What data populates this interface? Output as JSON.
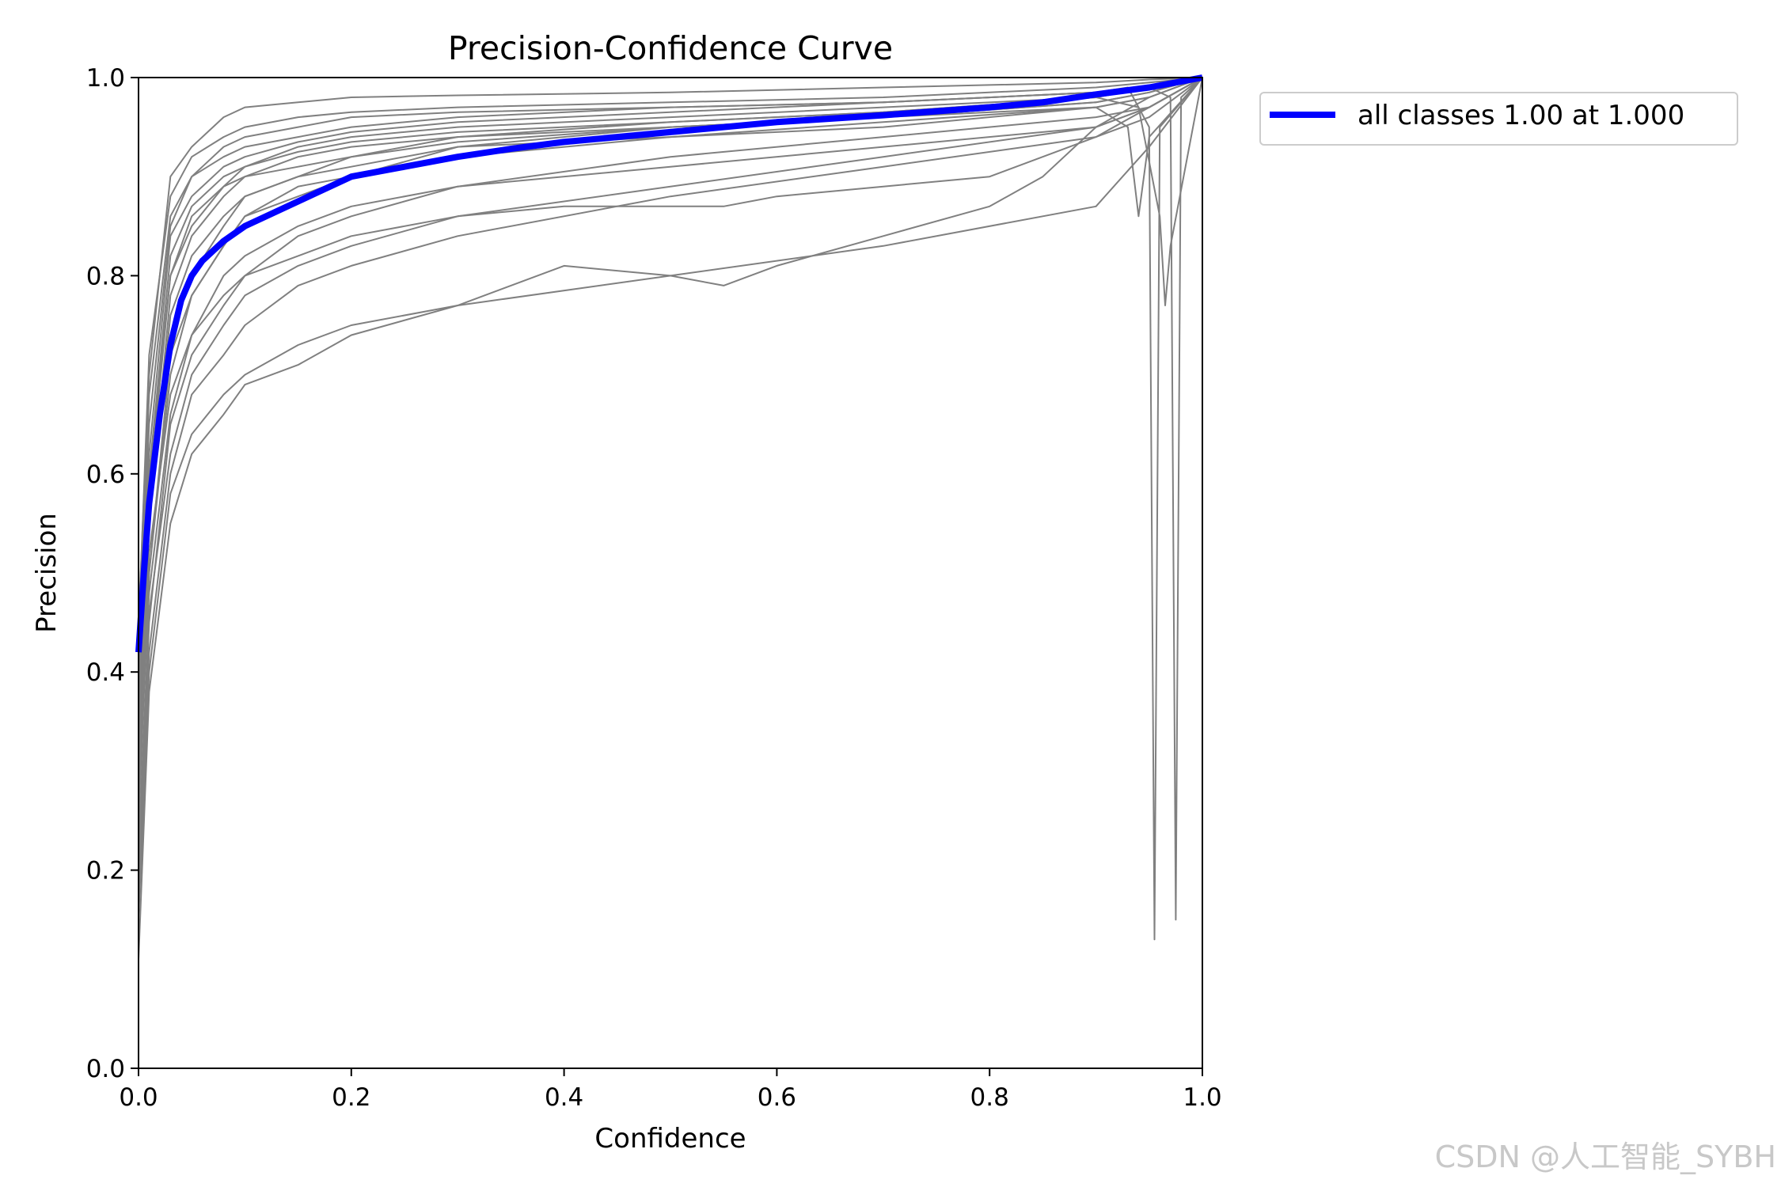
{
  "chart_data": {
    "type": "line",
    "title": "Precision-Confidence Curve",
    "xlabel": "Confidence",
    "ylabel": "Precision",
    "xlim": [
      0,
      1
    ],
    "ylim": [
      0,
      1
    ],
    "xticks": [
      "0.0",
      "0.2",
      "0.4",
      "0.6",
      "0.8",
      "1.0"
    ],
    "yticks": [
      "0.0",
      "0.2",
      "0.4",
      "0.6",
      "0.8",
      "1.0"
    ],
    "grid": false,
    "legend": {
      "placement": "outside-top-right",
      "entries": [
        {
          "label": "all classes 1.00 at 1.000",
          "color": "#0000ff"
        }
      ]
    },
    "class_curve_color": "#808080",
    "aggregate_series": {
      "name": "all classes 1.00 at 1.000",
      "color": "#0000ff",
      "x": [
        0.0,
        0.005,
        0.01,
        0.02,
        0.03,
        0.04,
        0.05,
        0.06,
        0.08,
        0.1,
        0.12,
        0.15,
        0.2,
        0.25,
        0.3,
        0.35,
        0.4,
        0.5,
        0.6,
        0.7,
        0.8,
        0.85,
        0.9,
        0.95,
        0.97,
        1.0
      ],
      "y": [
        0.42,
        0.5,
        0.57,
        0.66,
        0.73,
        0.775,
        0.8,
        0.815,
        0.835,
        0.85,
        0.86,
        0.875,
        0.9,
        0.91,
        0.92,
        0.928,
        0.935,
        0.945,
        0.955,
        0.962,
        0.97,
        0.975,
        0.983,
        0.99,
        0.994,
        1.0
      ]
    },
    "class_series": [
      {
        "x": [
          0.0,
          0.01,
          0.03,
          0.05,
          0.08,
          0.1,
          0.15,
          0.2,
          0.3,
          0.5,
          0.7,
          0.9,
          0.95,
          1.0
        ],
        "y": [
          0.45,
          0.7,
          0.9,
          0.93,
          0.96,
          0.97,
          0.975,
          0.98,
          0.982,
          0.985,
          0.99,
          0.995,
          0.998,
          1.0
        ]
      },
      {
        "x": [
          0.0,
          0.01,
          0.03,
          0.05,
          0.08,
          0.1,
          0.15,
          0.2,
          0.3,
          0.5,
          0.7,
          0.9,
          0.95,
          1.0
        ],
        "y": [
          0.4,
          0.65,
          0.85,
          0.9,
          0.93,
          0.94,
          0.95,
          0.96,
          0.965,
          0.97,
          0.975,
          0.985,
          0.99,
          1.0
        ]
      },
      {
        "x": [
          0.0,
          0.01,
          0.03,
          0.05,
          0.08,
          0.1,
          0.15,
          0.2,
          0.3,
          0.5,
          0.7,
          0.9,
          0.95,
          1.0
        ],
        "y": [
          0.35,
          0.6,
          0.82,
          0.87,
          0.9,
          0.91,
          0.93,
          0.94,
          0.95,
          0.96,
          0.97,
          0.98,
          0.99,
          1.0
        ]
      },
      {
        "x": [
          0.0,
          0.01,
          0.03,
          0.05,
          0.08,
          0.1,
          0.15,
          0.2,
          0.3,
          0.5,
          0.7,
          0.9,
          0.95,
          1.0
        ],
        "y": [
          0.3,
          0.55,
          0.78,
          0.84,
          0.88,
          0.9,
          0.91,
          0.92,
          0.935,
          0.95,
          0.96,
          0.975,
          0.985,
          1.0
        ]
      },
      {
        "x": [
          0.0,
          0.01,
          0.03,
          0.05,
          0.08,
          0.1,
          0.15,
          0.2,
          0.3,
          0.5,
          0.7,
          0.9,
          0.95,
          1.0
        ],
        "y": [
          0.25,
          0.5,
          0.7,
          0.78,
          0.83,
          0.86,
          0.89,
          0.9,
          0.92,
          0.94,
          0.95,
          0.97,
          0.98,
          1.0
        ]
      },
      {
        "x": [
          0.0,
          0.01,
          0.03,
          0.05,
          0.08,
          0.1,
          0.15,
          0.2,
          0.3,
          0.5,
          0.7,
          0.9,
          0.95,
          1.0
        ],
        "y": [
          0.2,
          0.45,
          0.65,
          0.72,
          0.77,
          0.8,
          0.84,
          0.86,
          0.89,
          0.92,
          0.94,
          0.96,
          0.97,
          1.0
        ]
      },
      {
        "x": [
          0.0,
          0.01,
          0.03,
          0.05,
          0.08,
          0.1,
          0.15,
          0.2,
          0.3,
          0.5,
          0.7,
          0.9,
          0.95,
          1.0
        ],
        "y": [
          0.15,
          0.4,
          0.58,
          0.64,
          0.68,
          0.7,
          0.73,
          0.75,
          0.77,
          0.8,
          0.83,
          0.87,
          0.93,
          1.0
        ]
      },
      {
        "x": [
          0.0,
          0.01,
          0.03,
          0.05,
          0.08,
          0.1,
          0.15,
          0.2,
          0.3,
          0.4,
          0.5,
          0.55,
          0.6,
          0.7,
          0.8,
          0.85,
          0.9,
          0.95,
          1.0
        ],
        "y": [
          0.11,
          0.38,
          0.55,
          0.62,
          0.66,
          0.69,
          0.71,
          0.74,
          0.77,
          0.81,
          0.8,
          0.79,
          0.81,
          0.84,
          0.87,
          0.9,
          0.95,
          0.98,
          1.0
        ]
      },
      {
        "x": [
          0.0,
          0.01,
          0.03,
          0.05,
          0.08,
          0.1,
          0.15,
          0.2,
          0.3,
          0.4,
          0.55,
          0.6,
          0.7,
          0.8,
          0.9,
          0.95,
          1.0
        ],
        "y": [
          0.3,
          0.52,
          0.68,
          0.74,
          0.78,
          0.8,
          0.82,
          0.84,
          0.86,
          0.87,
          0.87,
          0.88,
          0.89,
          0.9,
          0.94,
          0.97,
          1.0
        ]
      },
      {
        "x": [
          0.0,
          0.01,
          0.03,
          0.05,
          0.08,
          0.1,
          0.15,
          0.2,
          0.3,
          0.5,
          0.7,
          0.9,
          0.95,
          1.0
        ],
        "y": [
          0.38,
          0.6,
          0.8,
          0.86,
          0.89,
          0.9,
          0.92,
          0.93,
          0.94,
          0.95,
          0.96,
          0.975,
          0.985,
          1.0
        ]
      },
      {
        "x": [
          0.0,
          0.01,
          0.03,
          0.05,
          0.08,
          0.1,
          0.15,
          0.2,
          0.3,
          0.5,
          0.7,
          0.9,
          0.95,
          1.0
        ],
        "y": [
          0.28,
          0.48,
          0.66,
          0.74,
          0.8,
          0.82,
          0.85,
          0.87,
          0.89,
          0.91,
          0.93,
          0.95,
          0.97,
          1.0
        ]
      },
      {
        "x": [
          0.0,
          0.01,
          0.03,
          0.05,
          0.08,
          0.1,
          0.15,
          0.2,
          0.3,
          0.5,
          0.7,
          0.9,
          0.95,
          1.0
        ],
        "y": [
          0.22,
          0.46,
          0.62,
          0.7,
          0.75,
          0.78,
          0.81,
          0.83,
          0.86,
          0.89,
          0.92,
          0.95,
          0.97,
          1.0
        ]
      },
      {
        "x": [
          0.0,
          0.01,
          0.03,
          0.05,
          0.08,
          0.1,
          0.15,
          0.2,
          0.3,
          0.5,
          0.7,
          0.9,
          0.95,
          1.0
        ],
        "y": [
          0.42,
          0.68,
          0.86,
          0.9,
          0.92,
          0.93,
          0.94,
          0.95,
          0.96,
          0.97,
          0.975,
          0.985,
          0.99,
          1.0
        ]
      },
      {
        "x": [
          0.0,
          0.01,
          0.03,
          0.05,
          0.08,
          0.1,
          0.15,
          0.2,
          0.3,
          0.5,
          0.7,
          0.9,
          0.95,
          1.0
        ],
        "y": [
          0.33,
          0.56,
          0.74,
          0.8,
          0.85,
          0.88,
          0.9,
          0.91,
          0.93,
          0.94,
          0.955,
          0.97,
          0.98,
          1.0
        ]
      },
      {
        "x": [
          0.0,
          0.01,
          0.03,
          0.05,
          0.08,
          0.1,
          0.15,
          0.2,
          0.3,
          0.5,
          0.7,
          0.9,
          0.95,
          1.0
        ],
        "y": [
          0.18,
          0.42,
          0.6,
          0.68,
          0.72,
          0.75,
          0.79,
          0.81,
          0.84,
          0.88,
          0.91,
          0.94,
          0.96,
          1.0
        ]
      },
      {
        "x": [
          0.0,
          0.01,
          0.03,
          0.05,
          0.08,
          0.1,
          0.15,
          0.2,
          0.3,
          0.5,
          0.7,
          0.9,
          0.93,
          0.95,
          0.955,
          0.96,
          1.0
        ],
        "y": [
          0.4,
          0.62,
          0.84,
          0.88,
          0.91,
          0.92,
          0.935,
          0.945,
          0.955,
          0.965,
          0.975,
          0.985,
          0.99,
          0.95,
          0.13,
          0.95,
          1.0
        ]
      },
      {
        "x": [
          0.0,
          0.01,
          0.03,
          0.05,
          0.08,
          0.1,
          0.15,
          0.2,
          0.3,
          0.5,
          0.7,
          0.9,
          0.95,
          0.97,
          0.975,
          0.98,
          1.0
        ],
        "y": [
          0.36,
          0.58,
          0.8,
          0.85,
          0.89,
          0.91,
          0.925,
          0.935,
          0.945,
          0.955,
          0.965,
          0.98,
          0.99,
          0.98,
          0.15,
          0.98,
          1.0
        ]
      },
      {
        "x": [
          0.0,
          0.01,
          0.03,
          0.05,
          0.08,
          0.1,
          0.15,
          0.2,
          0.3,
          0.5,
          0.7,
          0.9,
          0.94,
          0.96,
          0.965,
          0.97,
          1.0
        ],
        "y": [
          0.32,
          0.55,
          0.76,
          0.82,
          0.86,
          0.88,
          0.9,
          0.92,
          0.94,
          0.955,
          0.965,
          0.98,
          0.97,
          0.86,
          0.77,
          0.83,
          1.0
        ]
      },
      {
        "x": [
          0.0,
          0.01,
          0.03,
          0.05,
          0.08,
          0.1,
          0.15,
          0.2,
          0.3,
          0.5,
          0.7,
          0.9,
          0.93,
          0.94,
          0.95,
          1.0
        ],
        "y": [
          0.26,
          0.5,
          0.72,
          0.78,
          0.83,
          0.86,
          0.88,
          0.9,
          0.93,
          0.95,
          0.96,
          0.97,
          0.95,
          0.86,
          0.94,
          1.0
        ]
      },
      {
        "x": [
          0.0,
          0.01,
          0.03,
          0.05,
          0.08,
          0.1,
          0.15,
          0.2,
          0.3,
          0.5,
          0.7,
          0.9,
          0.95,
          1.0
        ],
        "y": [
          0.44,
          0.72,
          0.88,
          0.92,
          0.94,
          0.95,
          0.96,
          0.965,
          0.97,
          0.975,
          0.98,
          0.99,
          0.995,
          1.0
        ]
      }
    ]
  },
  "watermark": "CSDN @人工智能_SYBH"
}
